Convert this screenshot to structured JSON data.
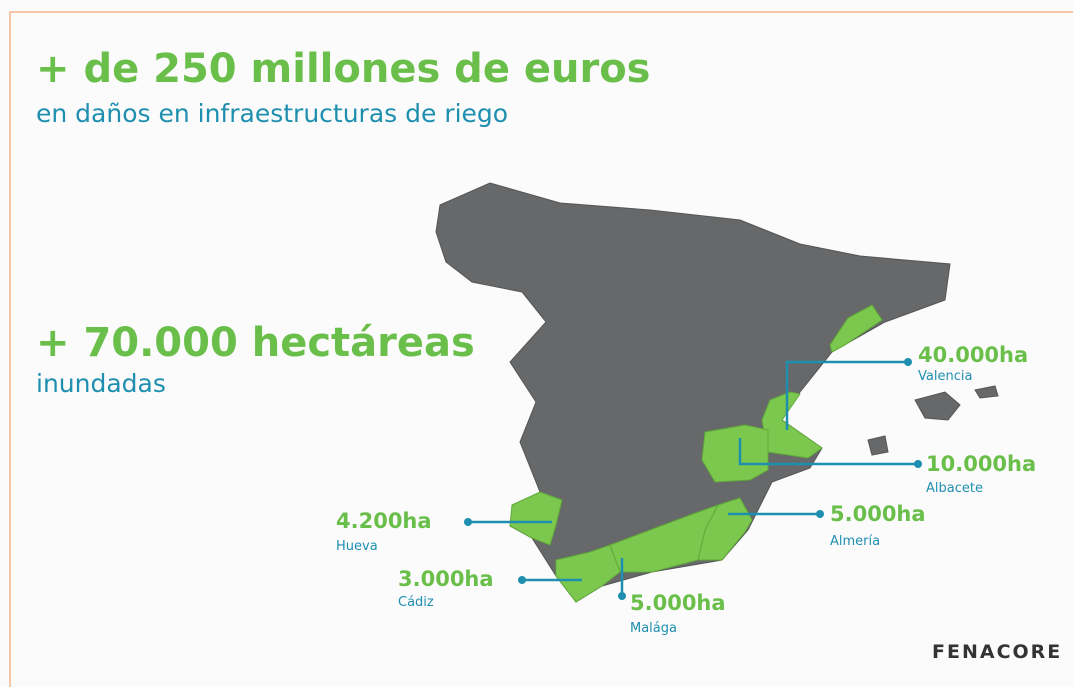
{
  "headline_euros": {
    "title": "+ de 250 millones de euros",
    "subtitle": "en daños en infraestructuras de riego"
  },
  "headline_hectares": {
    "title": "+ 70.000 hectáreas",
    "subtitle": "inundadas"
  },
  "regions": [
    {
      "area": "40.000ha",
      "name": "Valencia"
    },
    {
      "area": "10.000ha",
      "name": "Albacete"
    },
    {
      "area": "5.000ha",
      "name": "Almería"
    },
    {
      "area": "4.200ha",
      "name": "Hueva"
    },
    {
      "area": "3.000ha",
      "name": "Cádiz"
    },
    {
      "area": "5.000ha",
      "name": "Malága"
    }
  ],
  "logo": "FENACORE"
}
